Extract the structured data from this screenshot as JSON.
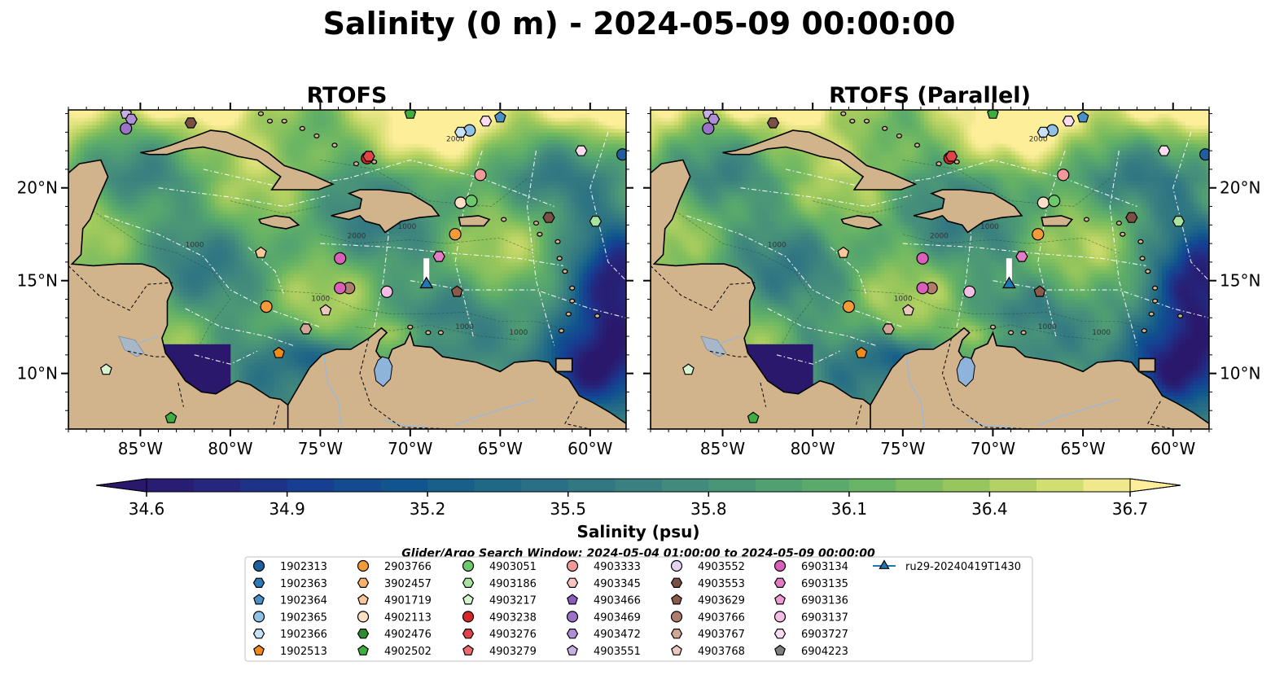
{
  "figure": {
    "title": "Salinity (0 m) - 2024-05-09 00:00:00",
    "window_label": "Glider/Argo Search Window: 2024-05-04 01:00:00 to 2024-05-09 00:00:00"
  },
  "chart_data": {
    "type": "heatmap",
    "panels": [
      {
        "title": "RTOFS"
      },
      {
        "title": "RTOFS (Parallel)"
      }
    ],
    "lon_range": [
      -89,
      -58
    ],
    "lat_range": [
      7,
      24.2
    ],
    "lon_ticks": [
      -85,
      -80,
      -75,
      -70,
      -65,
      -60
    ],
    "lon_tick_labels": [
      "85°W",
      "80°W",
      "75°W",
      "70°W",
      "65°W",
      "60°W"
    ],
    "lat_ticks": [
      10,
      15,
      20
    ],
    "lat_tick_labels": [
      "10°N",
      "15°N",
      "20°N"
    ],
    "colorbar": {
      "label": "Salinity (psu)",
      "min": 34.6,
      "max": 36.7,
      "step": 0.1,
      "ticks": [
        34.6,
        34.9,
        35.2,
        35.5,
        35.8,
        36.1,
        36.4,
        36.7
      ],
      "tick_labels": [
        "34.6",
        "34.9",
        "35.2",
        "35.5",
        "35.8",
        "36.1",
        "36.4",
        "36.7"
      ],
      "colormap": "haline",
      "extend": "both"
    },
    "depth_contour_labels": [
      "1000",
      "1000",
      "1000",
      "1000",
      "2000",
      "2000",
      "1000"
    ],
    "legend": [
      {
        "label": "1902313",
        "marker": "circle",
        "color": "#1f5fa0"
      },
      {
        "label": "1902363",
        "marker": "hexagon",
        "color": "#2f79b5"
      },
      {
        "label": "1902364",
        "marker": "pentagon",
        "color": "#4a90c8"
      },
      {
        "label": "1902365",
        "marker": "circle",
        "color": "#8fc0e6"
      },
      {
        "label": "1902366",
        "marker": "hexagon",
        "color": "#c8e2f5"
      },
      {
        "label": "1902513",
        "marker": "pentagon",
        "color": "#f28a1a"
      },
      {
        "label": "2903766",
        "marker": "circle",
        "color": "#f59a38"
      },
      {
        "label": "3902457",
        "marker": "hexagon",
        "color": "#f7b36e"
      },
      {
        "label": "4901719",
        "marker": "pentagon",
        "color": "#f8c79a"
      },
      {
        "label": "4902113",
        "marker": "circle",
        "color": "#fbe0c6"
      },
      {
        "label": "4902476",
        "marker": "hexagon",
        "color": "#2e8b2e"
      },
      {
        "label": "4902502",
        "marker": "pentagon",
        "color": "#3fae3f"
      },
      {
        "label": "4903051",
        "marker": "circle",
        "color": "#6bc96b"
      },
      {
        "label": "4903186",
        "marker": "hexagon",
        "color": "#a8e3a0"
      },
      {
        "label": "4903217",
        "marker": "pentagon",
        "color": "#d6f5cf"
      },
      {
        "label": "4903238",
        "marker": "circle",
        "color": "#d62728"
      },
      {
        "label": "4903276",
        "marker": "hexagon",
        "color": "#e0444a"
      },
      {
        "label": "4903279",
        "marker": "pentagon",
        "color": "#ea6b70"
      },
      {
        "label": "4903333",
        "marker": "circle",
        "color": "#f29a9a"
      },
      {
        "label": "4903345",
        "marker": "hexagon",
        "color": "#f8c4c0"
      },
      {
        "label": "4903466",
        "marker": "pentagon",
        "color": "#8a5cc0"
      },
      {
        "label": "4903469",
        "marker": "circle",
        "color": "#9a73c9"
      },
      {
        "label": "4903472",
        "marker": "hexagon",
        "color": "#b08ed6"
      },
      {
        "label": "4903551",
        "marker": "pentagon",
        "color": "#c9b0e4"
      },
      {
        "label": "4903552",
        "marker": "circle",
        "color": "#e2d3f1"
      },
      {
        "label": "4903553",
        "marker": "hexagon",
        "color": "#7a4f45"
      },
      {
        "label": "4903629",
        "marker": "pentagon",
        "color": "#8c5a4c"
      },
      {
        "label": "4903766",
        "marker": "circle",
        "color": "#b07c6e"
      },
      {
        "label": "4903767",
        "marker": "hexagon",
        "color": "#d2a596"
      },
      {
        "label": "4903768",
        "marker": "pentagon",
        "color": "#ebc8bc"
      },
      {
        "label": "6903134",
        "marker": "circle",
        "color": "#d95fb8"
      },
      {
        "label": "6903135",
        "marker": "hexagon",
        "color": "#e27cc6"
      },
      {
        "label": "6903136",
        "marker": "pentagon",
        "color": "#ec9bd5"
      },
      {
        "label": "6903137",
        "marker": "circle",
        "color": "#f4bde3"
      },
      {
        "label": "6903727",
        "marker": "hexagon",
        "color": "#fadcf0"
      },
      {
        "label": "6904223",
        "marker": "pentagon",
        "color": "#7f7f7f"
      },
      {
        "label": "ru29-20240419T1430",
        "marker": "triangle",
        "color": "#1f77b4"
      }
    ],
    "floats": [
      {
        "lon": -58.2,
        "lat": 21.8,
        "label": "1902313"
      },
      {
        "lon": -65,
        "lat": 23.8,
        "label": "1902364"
      },
      {
        "lon": -66.7,
        "lat": 23.1,
        "label": "1902365"
      },
      {
        "lon": -67.2,
        "lat": 23.0,
        "label": "1902366"
      },
      {
        "lon": -77.3,
        "lat": 11.1,
        "label": "1902513"
      },
      {
        "lon": -78,
        "lat": 13.6,
        "label": "2903766"
      },
      {
        "lon": -78.3,
        "lat": 16.5,
        "label": "4901719"
      },
      {
        "lon": -67.2,
        "lat": 19.2,
        "label": "4902113"
      },
      {
        "lon": -83.3,
        "lat": 7.6,
        "label": "4902502"
      },
      {
        "lon": -66.6,
        "lat": 19.3,
        "label": "4903051"
      },
      {
        "lon": -59.7,
        "lat": 18.2,
        "label": "4903186"
      },
      {
        "lon": -86.9,
        "lat": 10.2,
        "label": "4903217"
      },
      {
        "lon": -70,
        "lat": 24.0,
        "label": "4902502"
      },
      {
        "lon": -72.4,
        "lat": 21.6,
        "label": "4903238"
      },
      {
        "lon": -72.3,
        "lat": 21.7,
        "label": "4903276"
      },
      {
        "lon": -66.1,
        "lat": 20.7,
        "label": "4903333"
      },
      {
        "lon": -85.8,
        "lat": 24.0,
        "label": "4903551"
      },
      {
        "lon": -85.5,
        "lat": 23.7,
        "label": "4903472"
      },
      {
        "lon": -85.8,
        "lat": 23.2,
        "label": "4903469"
      },
      {
        "lon": -82.2,
        "lat": 23.5,
        "label": "4903553"
      },
      {
        "lon": -62.3,
        "lat": 18.4,
        "label": "4903553"
      },
      {
        "lon": -67.5,
        "lat": 17.5,
        "label": "2903766"
      },
      {
        "lon": -68.4,
        "lat": 16.3,
        "label": "6903135"
      },
      {
        "lon": -73.9,
        "lat": 16.2,
        "label": "6903134"
      },
      {
        "lon": -73.4,
        "lat": 14.6,
        "label": "4903766"
      },
      {
        "lon": -73.9,
        "lat": 14.6,
        "label": "6903134"
      },
      {
        "lon": -71.3,
        "lat": 14.4,
        "label": "6903137"
      },
      {
        "lon": -74.7,
        "lat": 13.4,
        "label": "4903768"
      },
      {
        "lon": -75.8,
        "lat": 12.4,
        "label": "4903767"
      },
      {
        "lon": -67.4,
        "lat": 14.4,
        "label": "4903629"
      },
      {
        "lon": -60.5,
        "lat": 22.0,
        "label": "6903727"
      },
      {
        "lon": -65.8,
        "lat": 23.6,
        "label": "6903727"
      }
    ],
    "glider": {
      "label": "ru29-20240419T1430",
      "track": [
        [
          -69.1,
          16.2
        ],
        [
          -69.1,
          14.8
        ]
      ]
    }
  }
}
